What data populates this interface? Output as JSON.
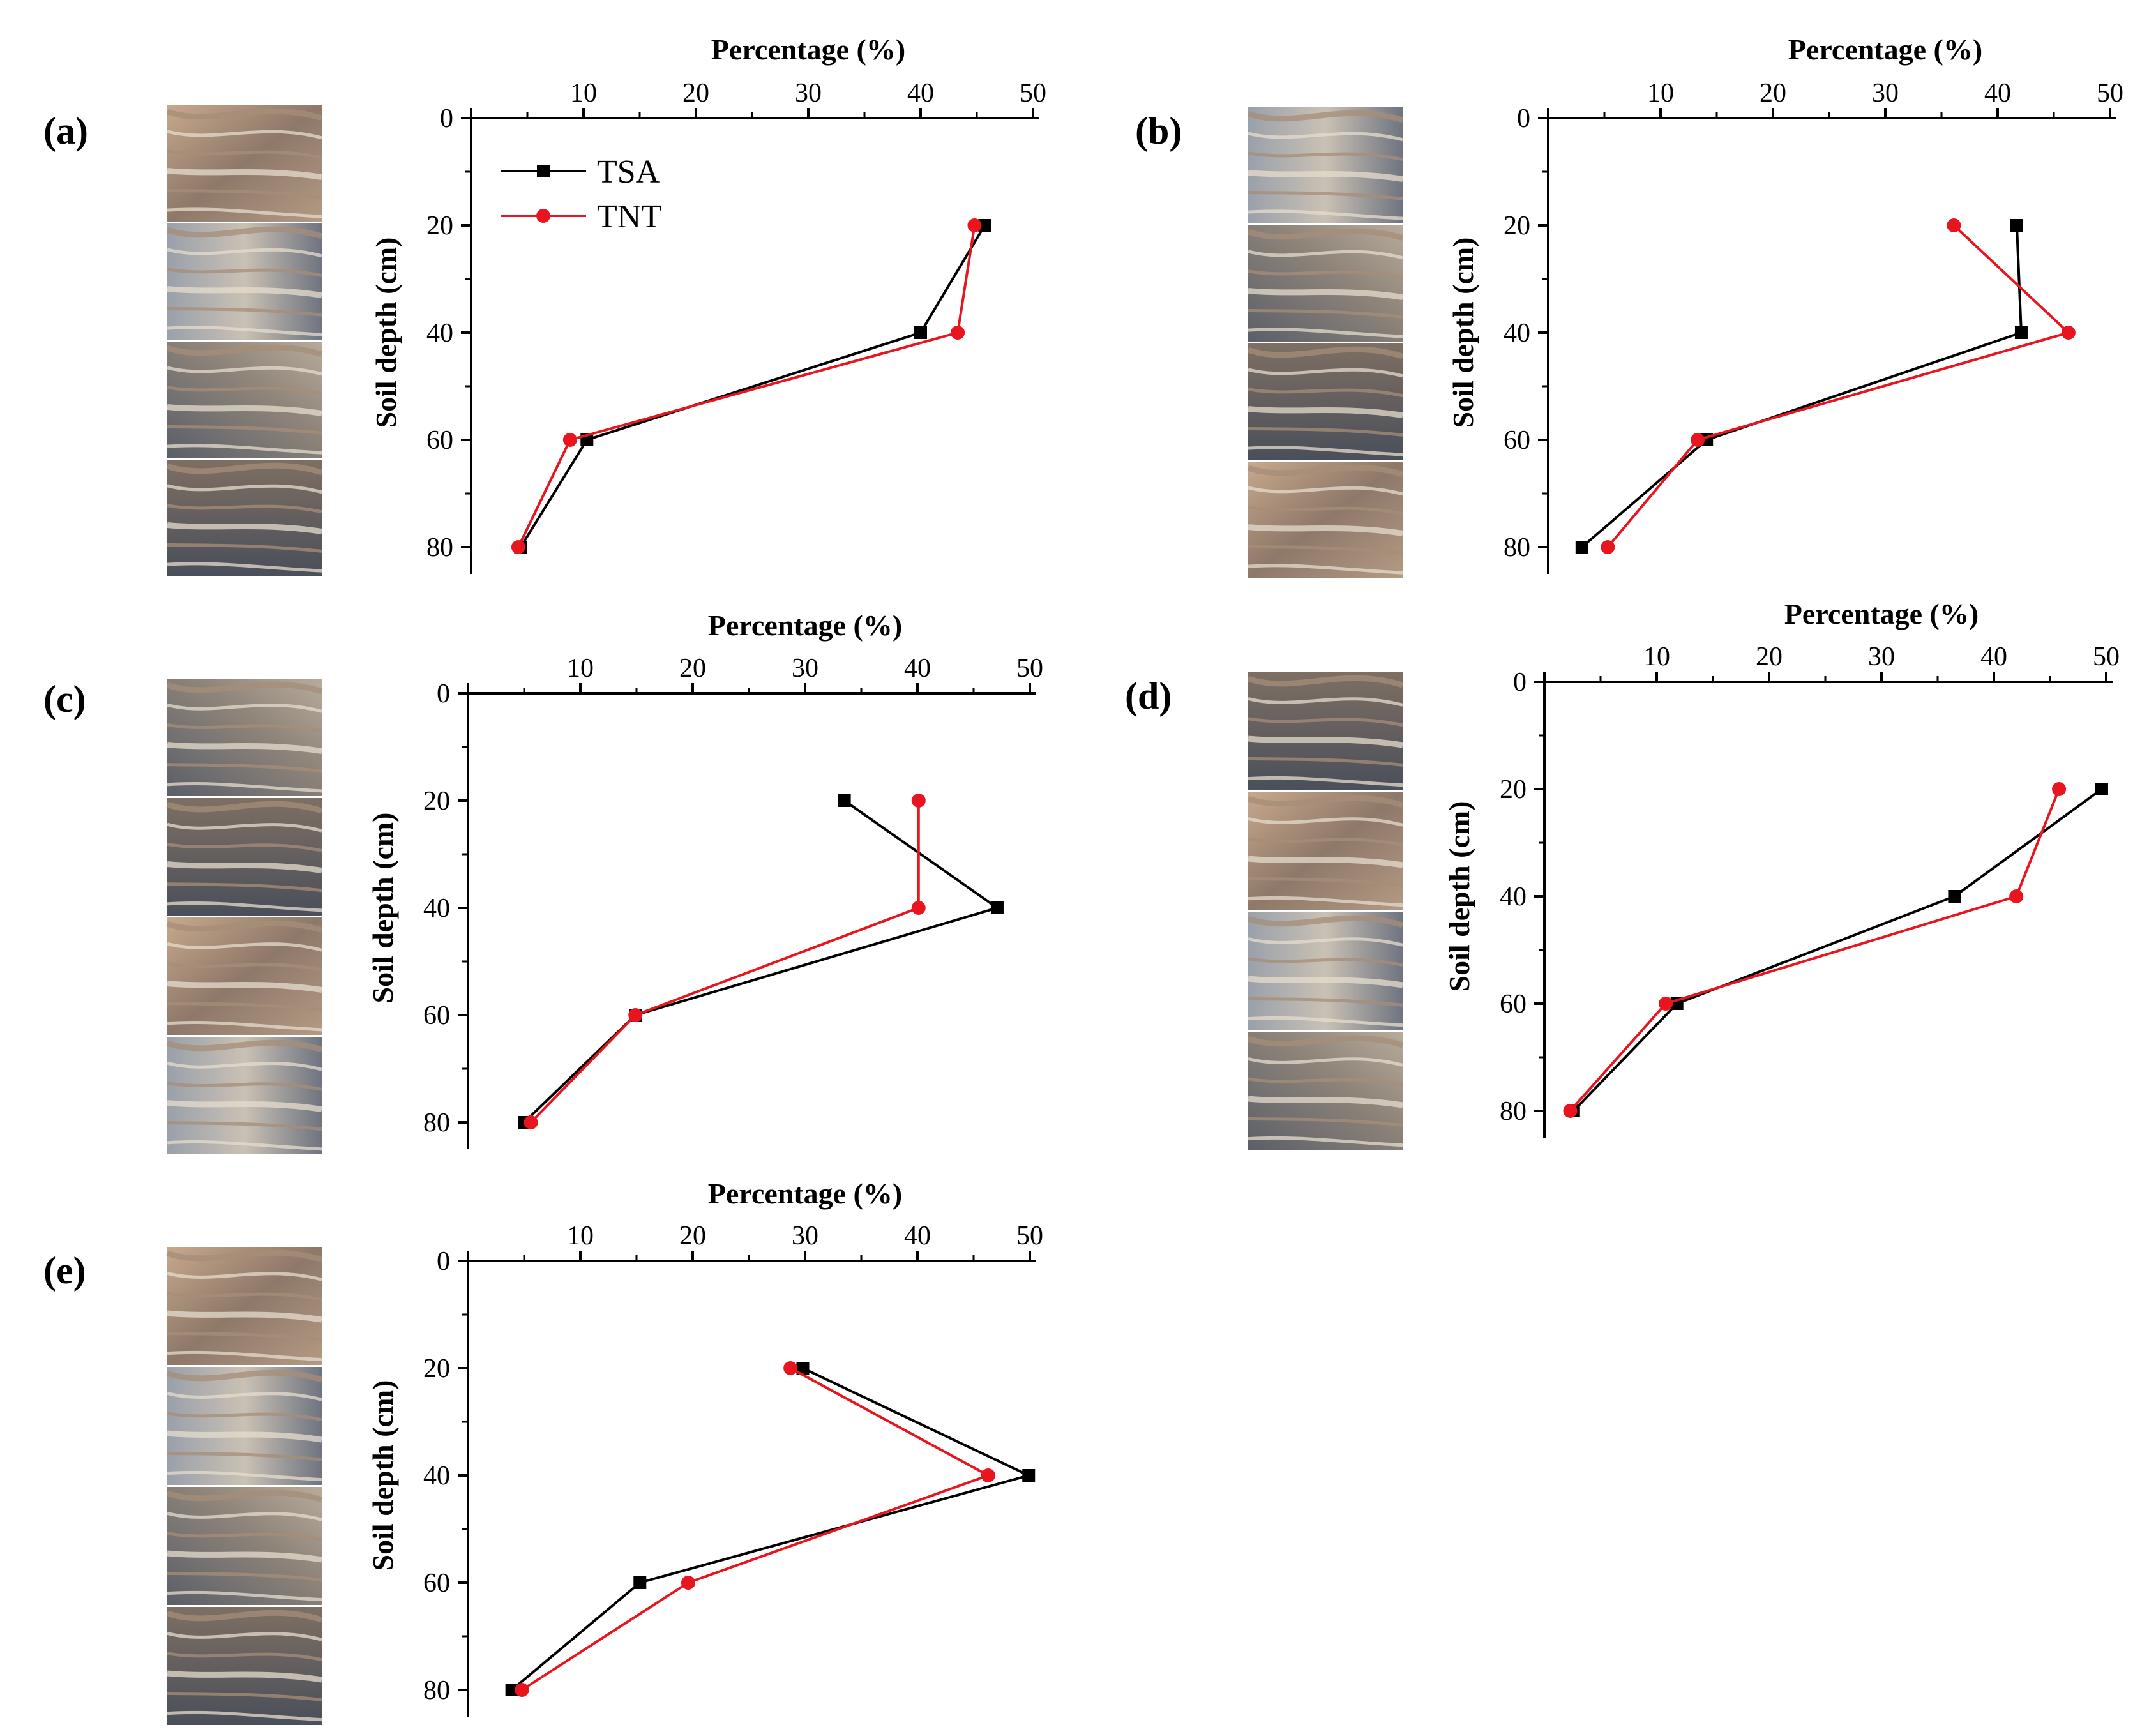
{
  "figure": {
    "legend": [
      {
        "label": "TSA",
        "color": "#000000",
        "marker": "square"
      },
      {
        "label": "TNT",
        "color": "#e8141e",
        "marker": "circle"
      }
    ]
  },
  "chart_data": [
    {
      "panel": "(a)",
      "type": "line",
      "xlabel": "Percentage (%)",
      "ylabel": "Soil depth (cm)",
      "xlim": [
        0,
        50
      ],
      "ylim": [
        0,
        80
      ],
      "y_inverted": true,
      "x_axis_position": "top",
      "xticks": [
        0,
        10,
        20,
        30,
        40,
        50
      ],
      "yticks": [
        0,
        20,
        40,
        60,
        80
      ],
      "legend": "top-left",
      "photo_strip": "root images beside the plot",
      "series": [
        {
          "name": "TSA",
          "color": "#000000",
          "marker": "square",
          "x": [
            45.7,
            40.0,
            10.3,
            4.4
          ],
          "y": [
            20,
            40,
            60,
            80
          ]
        },
        {
          "name": "TNT",
          "color": "#e8141e",
          "marker": "circle",
          "x": [
            44.8,
            43.3,
            8.8,
            4.2
          ],
          "y": [
            20,
            40,
            60,
            80
          ]
        }
      ]
    },
    {
      "panel": "(b)",
      "type": "line",
      "xlabel": "Percentage (%)",
      "ylabel": "Soil depth (cm)",
      "xlim": [
        0,
        50
      ],
      "ylim": [
        0,
        80
      ],
      "y_inverted": true,
      "x_axis_position": "top",
      "xticks": [
        0,
        10,
        20,
        30,
        40,
        50
      ],
      "yticks": [
        0,
        20,
        40,
        60,
        80
      ],
      "photo_strip": "root images beside the plot",
      "series": [
        {
          "name": "TSA",
          "color": "#000000",
          "marker": "square",
          "x": [
            41.7,
            42.1,
            14.1,
            3.0
          ],
          "y": [
            20,
            40,
            60,
            80
          ]
        },
        {
          "name": "TNT",
          "color": "#e8141e",
          "marker": "circle",
          "x": [
            36.1,
            46.3,
            13.3,
            5.3
          ],
          "y": [
            20,
            40,
            60,
            80
          ]
        }
      ]
    },
    {
      "panel": "(c)",
      "type": "line",
      "xlabel": "Percentage (%)",
      "ylabel": "Soil depth (cm)",
      "xlim": [
        0,
        50
      ],
      "ylim": [
        0,
        80
      ],
      "y_inverted": true,
      "x_axis_position": "top",
      "xticks": [
        0,
        10,
        20,
        30,
        40,
        50
      ],
      "yticks": [
        0,
        20,
        40,
        60,
        80
      ],
      "photo_strip": "root images beside the plot",
      "series": [
        {
          "name": "TSA",
          "color": "#000000",
          "marker": "square",
          "x": [
            33.5,
            47.1,
            14.9,
            5.0
          ],
          "y": [
            20,
            40,
            60,
            80
          ]
        },
        {
          "name": "TNT",
          "color": "#e8141e",
          "marker": "circle",
          "x": [
            40.1,
            40.1,
            14.9,
            5.6
          ],
          "y": [
            20,
            40,
            60,
            80
          ]
        }
      ]
    },
    {
      "panel": "(d)",
      "type": "line",
      "xlabel": "Percentage (%)",
      "ylabel": "Soil depth (cm)",
      "xlim": [
        0,
        50
      ],
      "ylim": [
        0,
        80
      ],
      "y_inverted": true,
      "x_axis_position": "top",
      "xticks": [
        0,
        10,
        20,
        30,
        40,
        50
      ],
      "yticks": [
        0,
        20,
        40,
        60,
        80
      ],
      "photo_strip": "root images beside the plot",
      "series": [
        {
          "name": "TSA",
          "color": "#000000",
          "marker": "square",
          "x": [
            49.6,
            36.5,
            11.8,
            2.6
          ],
          "y": [
            20,
            40,
            60,
            80
          ]
        },
        {
          "name": "TNT",
          "color": "#e8141e",
          "marker": "circle",
          "x": [
            45.8,
            42.0,
            10.8,
            2.3
          ],
          "y": [
            20,
            40,
            60,
            80
          ]
        }
      ]
    },
    {
      "panel": "(e)",
      "type": "line",
      "xlabel": "Percentage (%)",
      "ylabel": "Soil depth (cm)",
      "xlim": [
        0,
        50
      ],
      "ylim": [
        0,
        80
      ],
      "y_inverted": true,
      "x_axis_position": "top",
      "xticks": [
        0,
        10,
        20,
        30,
        40,
        50
      ],
      "yticks": [
        0,
        20,
        40,
        60,
        80
      ],
      "photo_strip": "root images beside the plot",
      "series": [
        {
          "name": "TSA",
          "color": "#000000",
          "marker": "square",
          "x": [
            29.8,
            49.9,
            15.3,
            3.9
          ],
          "y": [
            20,
            40,
            60,
            80
          ]
        },
        {
          "name": "TNT",
          "color": "#e8141e",
          "marker": "circle",
          "x": [
            28.7,
            46.3,
            19.6,
            4.8
          ],
          "y": [
            20,
            40,
            60,
            80
          ]
        }
      ]
    }
  ]
}
